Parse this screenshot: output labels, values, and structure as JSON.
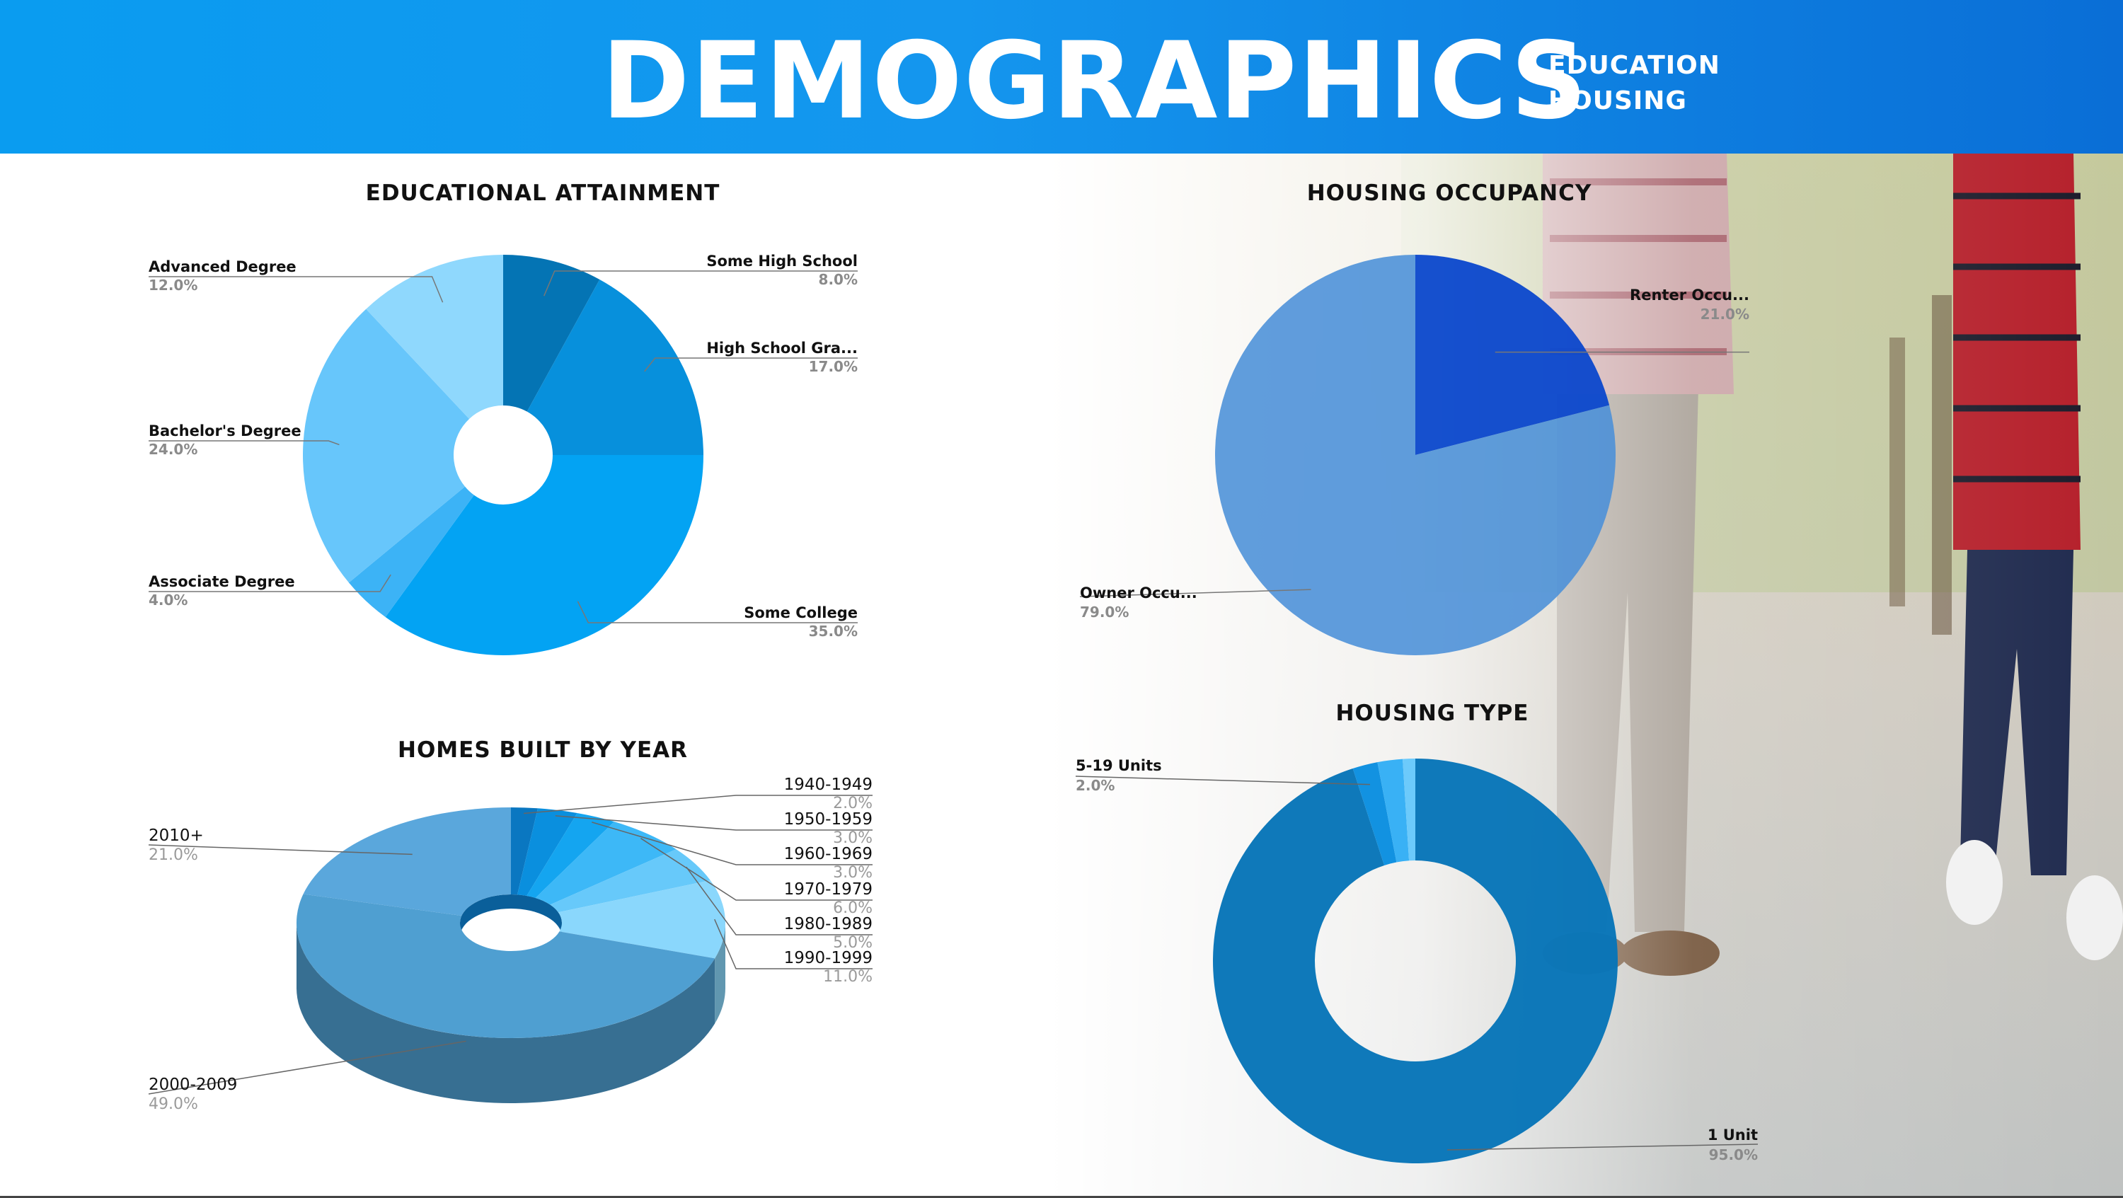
{
  "header": {
    "title": "DEMOGRAPHICS",
    "sub1": "EDUCATION",
    "sub2": "HOUSING"
  },
  "colors": {
    "header_start": "#0a9cf0",
    "header_end": "#0a6ed6"
  },
  "chart_data": [
    {
      "type": "pie",
      "title": "EDUCATIONAL ATTAINMENT",
      "categories": [
        "Some High School",
        "High School Gra...",
        "Some College",
        "Associate Degree",
        "Bachelor's Degree",
        "Advanced Degree"
      ],
      "values": [
        8.0,
        17.0,
        35.0,
        4.0,
        24.0,
        12.0
      ],
      "labels": [
        "8.0%",
        "17.0%",
        "35.0%",
        "4.0%",
        "24.0%",
        "12.0%"
      ],
      "colors": [
        "#0474b4",
        "#0790dc",
        "#03a3f3",
        "#3cb3f6",
        "#67c6fb",
        "#8fd8fd"
      ],
      "hole": "small donut"
    },
    {
      "type": "pie",
      "title": "HOUSING OCCUPANCY",
      "categories": [
        "Renter Occu...",
        "Owner Occu..."
      ],
      "values": [
        21.0,
        79.0
      ],
      "labels": [
        "21.0%",
        "79.0%"
      ],
      "colors": [
        "#0a47cc",
        "#4a8fd8"
      ]
    },
    {
      "type": "pie",
      "title": "HOMES BUILT BY YEAR",
      "categories": [
        "1940-1949",
        "1950-1959",
        "1960-1969",
        "1970-1979",
        "1980-1989",
        "1990-1999",
        "2000-2009",
        "2010+"
      ],
      "values": [
        2.0,
        3.0,
        3.0,
        6.0,
        5.0,
        11.0,
        49.0,
        21.0
      ],
      "labels": [
        "2.0%",
        "3.0%",
        "3.0%",
        "6.0%",
        "5.0%",
        "11.0%",
        "49.0%",
        "21.0%"
      ],
      "colors": [
        "#0a77c1",
        "#0a8fde",
        "#14a5f0",
        "#3db8f7",
        "#67c9fa",
        "#8ad7fc",
        "#4f9fd1",
        "#5aa7dc"
      ],
      "style": "3D donut"
    },
    {
      "type": "pie",
      "title": "HOUSING TYPE",
      "categories": [
        "1 Unit",
        "5-19 Units",
        "",
        ""
      ],
      "values": [
        95.0,
        2.0,
        2.0,
        1.0
      ],
      "labels": [
        "95.0%",
        "2.0%",
        "",
        ""
      ],
      "colors": [
        "#0775b8",
        "#0a8ee0",
        "#33aef5",
        "#67c8fb"
      ],
      "hole": "donut"
    }
  ]
}
